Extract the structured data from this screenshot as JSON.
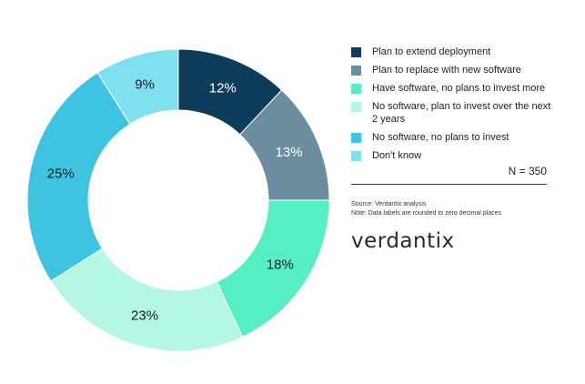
{
  "chart_data": {
    "type": "pie",
    "donut": true,
    "categories": [
      "Plan to extend deployment",
      "Plan to replace with new software",
      "Have software, no plans to invest more",
      "No software, plan to invest over the next 2 years",
      "No software, no plans to invest",
      "Don't know"
    ],
    "values": [
      12,
      13,
      18,
      23,
      25,
      9
    ],
    "data_labels": [
      "12%",
      "13%",
      "18%",
      "23%",
      "25%",
      "9%"
    ],
    "colors": [
      "#0e3d5b",
      "#6b8d9f",
      "#56efc4",
      "#b5f7e5",
      "#3ec4e0",
      "#7fe1f0"
    ],
    "label_colors": [
      "#ffffff",
      "#ffffff",
      "#1a1a1a",
      "#1a1a1a",
      "#1a1a1a",
      "#1a1a1a"
    ],
    "legend_position": "right"
  },
  "legend": {
    "items": [
      {
        "label": "Plan to extend deployment"
      },
      {
        "label": "Plan to replace with new software"
      },
      {
        "label": "Have software, no plans to invest more"
      },
      {
        "label": "No software, plan to invest over the next 2 years"
      },
      {
        "label": "No software, no plans to invest"
      },
      {
        "label": "Don't know"
      }
    ]
  },
  "sample_size": "N = 350",
  "notes": {
    "source": "Source: Verdantix analysis",
    "note": "Note: Data labels are rounded to zero decimal places"
  },
  "brand": {
    "logo_text": "verdantix"
  }
}
